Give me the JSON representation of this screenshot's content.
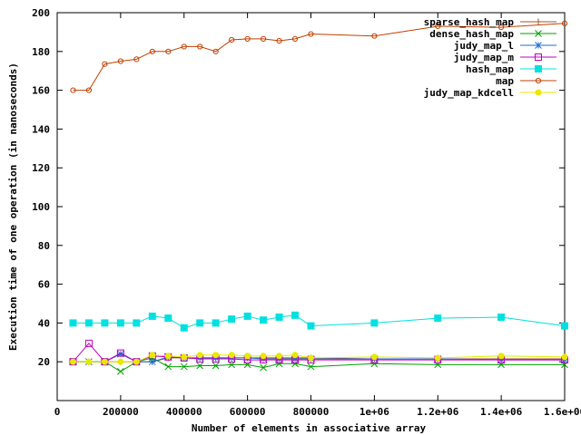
{
  "chart_data": {
    "type": "line",
    "title": "",
    "xlabel": "Number of elements in associative array",
    "ylabel": "Execution time of one operation (in nanoseconds)",
    "xlim": [
      0,
      1600000
    ],
    "ylim": [
      0,
      200
    ],
    "x_ticks": [
      {
        "value": 0,
        "label": "0"
      },
      {
        "value": 200000,
        "label": "200000"
      },
      {
        "value": 400000,
        "label": "400000"
      },
      {
        "value": 600000,
        "label": "600000"
      },
      {
        "value": 800000,
        "label": "800000"
      },
      {
        "value": 1000000,
        "label": "1e+06"
      },
      {
        "value": 1200000,
        "label": "1.2e+06"
      },
      {
        "value": 1400000,
        "label": "1.4e+06"
      },
      {
        "value": 1600000,
        "label": "1.6e+06"
      }
    ],
    "y_ticks": [
      {
        "value": 20,
        "label": "20"
      },
      {
        "value": 40,
        "label": "40"
      },
      {
        "value": 60,
        "label": "60"
      },
      {
        "value": 80,
        "label": "80"
      },
      {
        "value": 100,
        "label": "100"
      },
      {
        "value": 120,
        "label": "120"
      },
      {
        "value": 140,
        "label": "140"
      },
      {
        "value": 160,
        "label": "160"
      },
      {
        "value": 180,
        "label": "180"
      },
      {
        "value": 200,
        "label": "200"
      }
    ],
    "legend_position": "top-right",
    "x": [
      50000,
      100000,
      150000,
      200000,
      250000,
      300000,
      350000,
      400000,
      450000,
      500000,
      550000,
      600000,
      650000,
      700000,
      750000,
      800000,
      1000000,
      1200000,
      1400000,
      1600000
    ],
    "series": [
      {
        "name": "sparse_hash_map",
        "color": "#a0522d",
        "marker": "plus",
        "values": [
          20,
          20,
          20,
          20,
          20,
          20,
          22,
          22,
          22,
          22,
          22,
          22,
          22,
          22,
          22,
          22,
          21.5,
          21.5,
          21.5,
          21.5
        ]
      },
      {
        "name": "dense_hash_map",
        "color": "#00a000",
        "marker": "cross",
        "values": [
          20,
          20,
          20,
          15,
          20,
          22,
          17.5,
          17.5,
          18,
          18,
          18.5,
          18.5,
          17,
          19,
          19,
          17.5,
          19,
          18.5,
          18.5,
          18.5
        ]
      },
      {
        "name": "judy_map_l",
        "color": "#1e6ed2",
        "marker": "star",
        "values": [
          20,
          20,
          20,
          24,
          20,
          20,
          22.5,
          22,
          22,
          22,
          22,
          22,
          21.5,
          21.5,
          21.5,
          21.5,
          21.5,
          21.5,
          21,
          21
        ]
      },
      {
        "name": "judy_map_m",
        "color": "#c000c0",
        "marker": "box",
        "values": [
          20,
          29.5,
          20,
          24.5,
          20,
          23,
          22.5,
          22,
          21.5,
          21.5,
          21.5,
          21,
          21,
          21,
          21,
          21,
          21,
          21,
          21,
          21
        ]
      },
      {
        "name": "hash_map",
        "color": "#00e0e0",
        "marker": "filled-box",
        "values": [
          40,
          40,
          40,
          40,
          40,
          43.5,
          42.5,
          37.5,
          40,
          40,
          42,
          43.5,
          41.5,
          43,
          44,
          38.5,
          40,
          42.5,
          43,
          38.5
        ]
      },
      {
        "name": "map",
        "color": "#c04000",
        "marker": "circle",
        "values": [
          160,
          160,
          173.5,
          175,
          176,
          180,
          180,
          182.5,
          182.5,
          180,
          186,
          186.5,
          186.5,
          185.5,
          186.5,
          189,
          188,
          193,
          192.5,
          194.5
        ]
      },
      {
        "name": "judy_map_kdcell",
        "color": "#e8e800",
        "marker": "filled-circle",
        "values": [
          20,
          20,
          20,
          20,
          20,
          23.5,
          23,
          22.5,
          23.5,
          23.5,
          23.5,
          23,
          23,
          23,
          23.5,
          22,
          22.5,
          22,
          23,
          22.5
        ]
      }
    ]
  }
}
